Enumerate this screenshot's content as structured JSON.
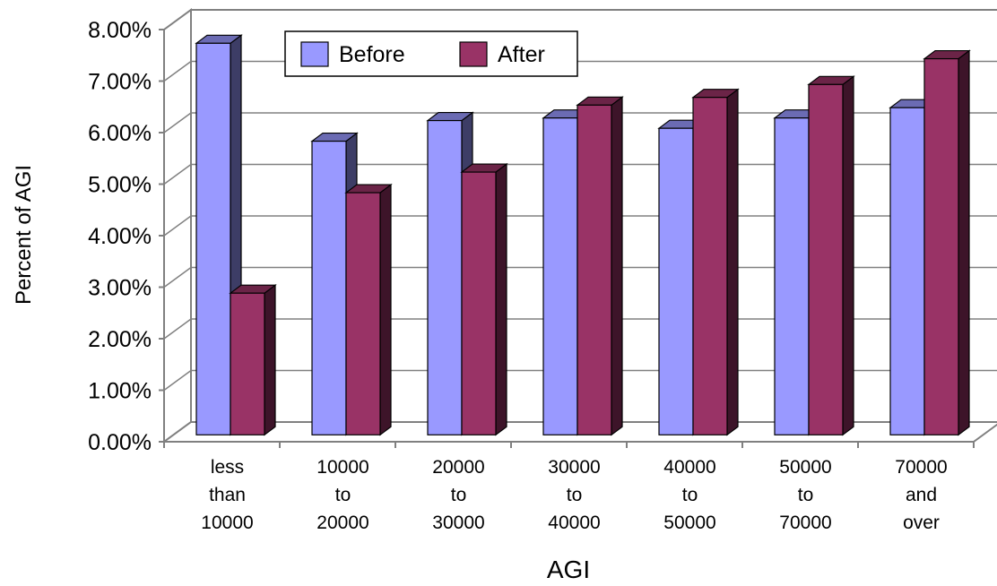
{
  "chart_data": {
    "type": "bar",
    "subtype": "3d-clustered",
    "categories": [
      [
        "less",
        "than",
        "10000"
      ],
      [
        "10000",
        "to",
        "20000"
      ],
      [
        "20000",
        "to",
        "30000"
      ],
      [
        "30000",
        "to",
        "40000"
      ],
      [
        "40000",
        "to",
        "50000"
      ],
      [
        "50000",
        "to",
        "70000"
      ],
      [
        "70000",
        "and",
        "over"
      ]
    ],
    "series": [
      {
        "name": "Before",
        "color": "#9999ff",
        "values": [
          7.6,
          5.7,
          6.1,
          6.15,
          5.95,
          6.15,
          6.35
        ]
      },
      {
        "name": "After",
        "color": "#993366",
        "values": [
          2.75,
          4.7,
          5.1,
          6.4,
          6.55,
          6.8,
          7.3
        ]
      }
    ],
    "xlabel": "AGI",
    "ylabel": "Percent of AGI",
    "ylim": [
      0,
      8
    ],
    "yticks": [
      "0.00%",
      "1.00%",
      "2.00%",
      "3.00%",
      "4.00%",
      "5.00%",
      "6.00%",
      "7.00%",
      "8.00%"
    ],
    "grid": true,
    "legend": "top-center"
  }
}
